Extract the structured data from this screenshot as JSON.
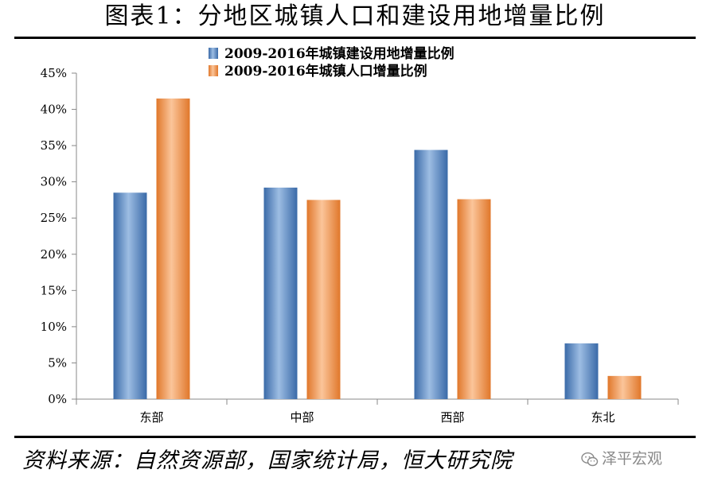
{
  "figure": {
    "title": "图表1：分地区城镇人口和建设用地增量比例",
    "source": "资料来源：自然资源部，国家统计局，恒大研究院",
    "watermark": "泽平宏观",
    "watermark_icon": "wechat-icon"
  },
  "chart_data": {
    "type": "bar",
    "title": "",
    "xlabel": "",
    "ylabel": "",
    "categories": [
      "东部",
      "中部",
      "西部",
      "东北"
    ],
    "series": [
      {
        "name": "2009-2016年城镇建设用地增量比例",
        "values": [
          28.5,
          29.2,
          34.4,
          7.7
        ],
        "color": "#4f81bd"
      },
      {
        "name": "2009-2016年城镇人口增量比例",
        "values": [
          41.5,
          27.5,
          27.6,
          3.2
        ],
        "color": "#f79646"
      }
    ],
    "ylim": [
      0,
      45
    ],
    "yticks": [
      "0%",
      "5%",
      "10%",
      "15%",
      "20%",
      "25%",
      "30%",
      "35%",
      "40%",
      "45%"
    ],
    "grid": false,
    "legend_position": "top-center"
  }
}
